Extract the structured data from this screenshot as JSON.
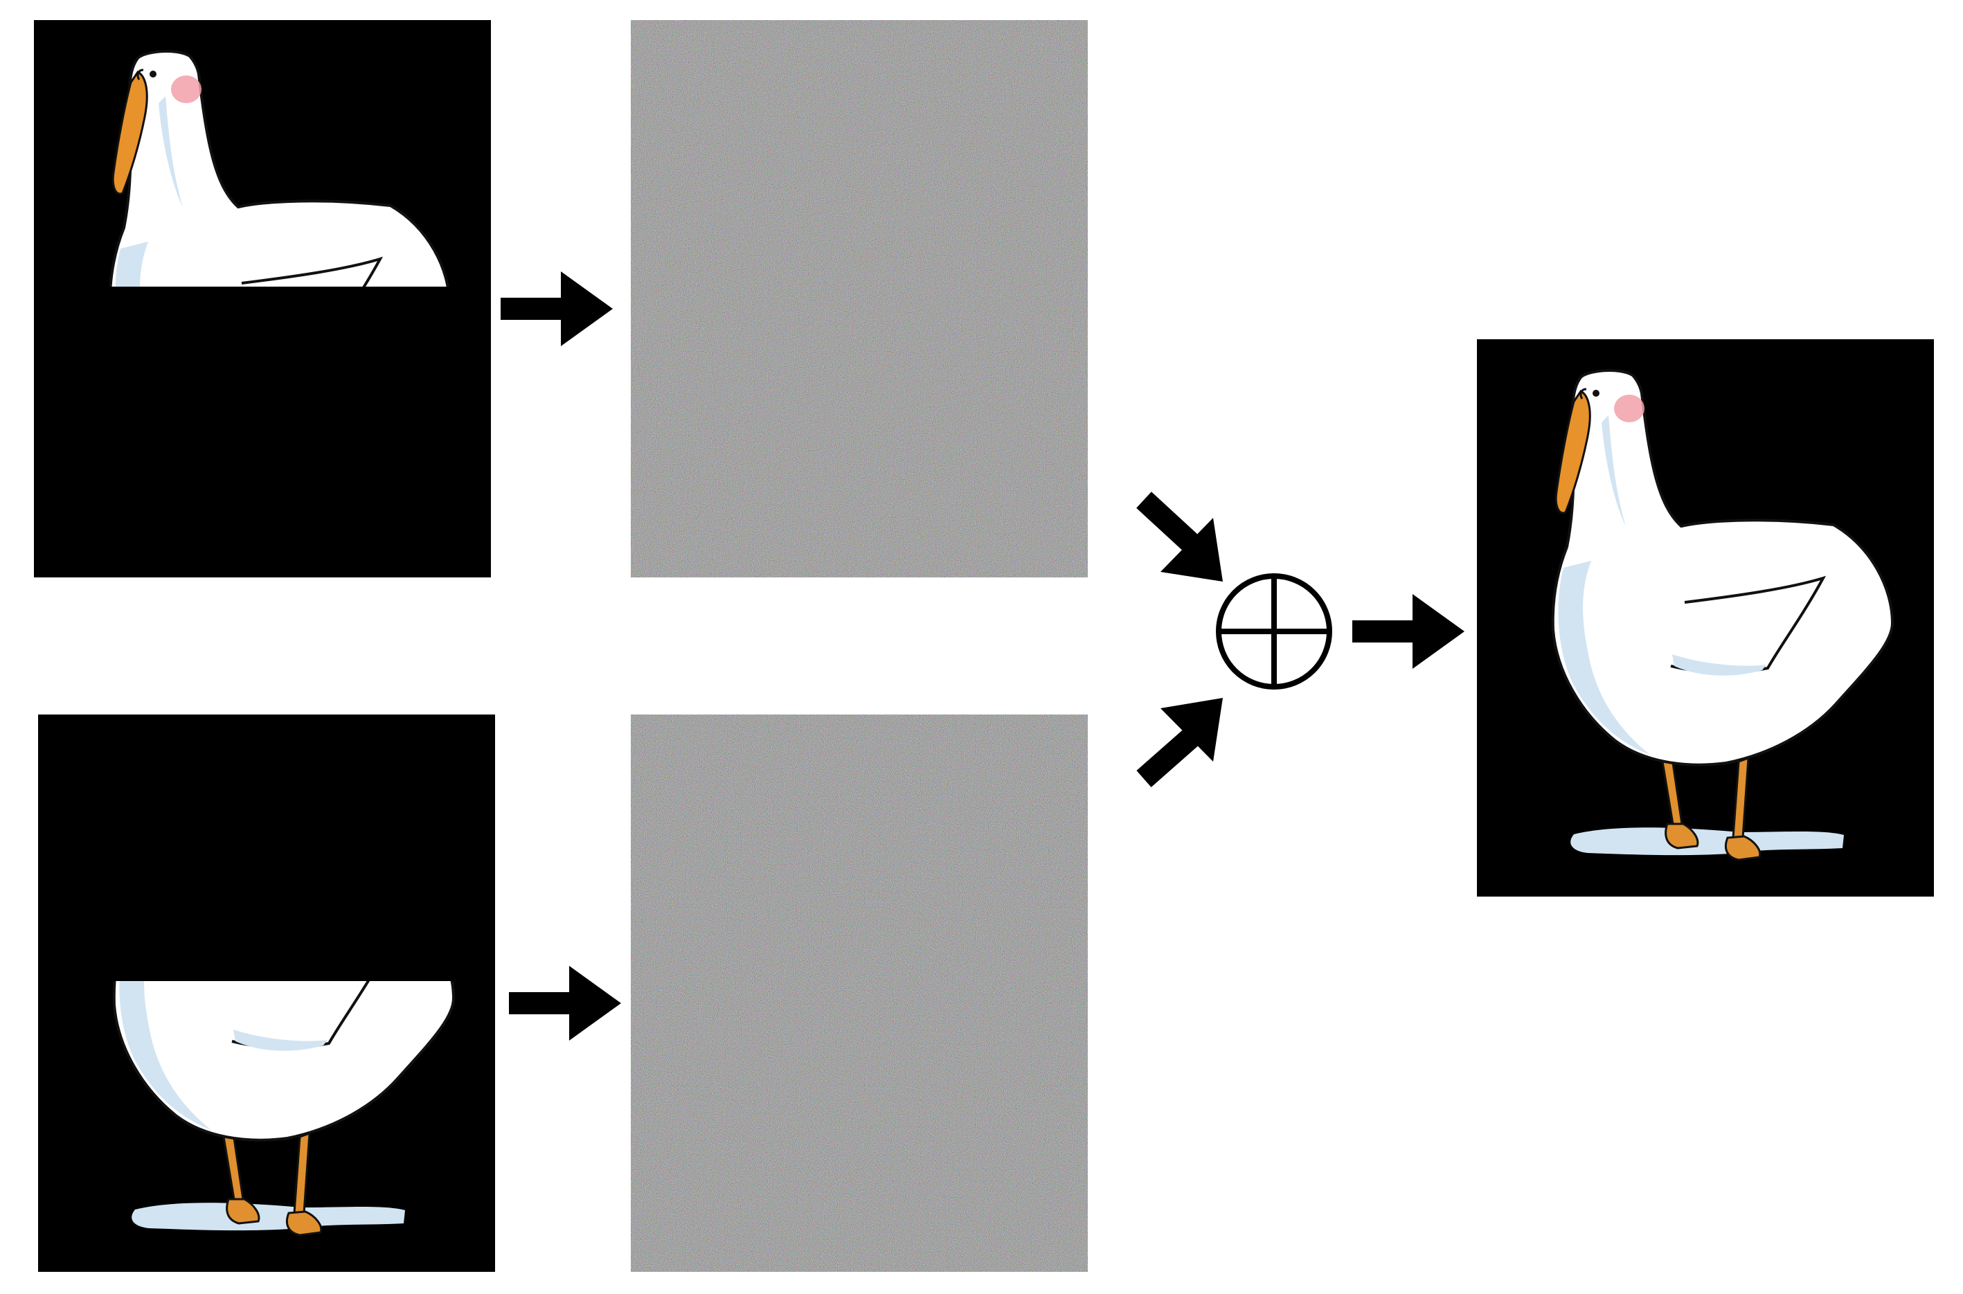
{
  "diagram": {
    "panels": [
      {
        "id": "top-half-input",
        "kind": "image",
        "content": "goose-top-half",
        "background": "#000000"
      },
      {
        "id": "bottom-half-input",
        "kind": "image",
        "content": "goose-bottom-half",
        "background": "#000000"
      },
      {
        "id": "top-noise-share",
        "kind": "noise"
      },
      {
        "id": "bottom-noise-share",
        "kind": "noise"
      },
      {
        "id": "reconstructed-output",
        "kind": "image",
        "content": "goose-full",
        "background": "#000000"
      }
    ],
    "operator": {
      "name": "xor",
      "symbol": "⊕"
    },
    "arrows": [
      {
        "from": "top-half-input",
        "to": "top-noise-share"
      },
      {
        "from": "bottom-half-input",
        "to": "bottom-noise-share"
      },
      {
        "from": "top-noise-share",
        "to": "xor-operator"
      },
      {
        "from": "bottom-noise-share",
        "to": "xor-operator"
      },
      {
        "from": "xor-operator",
        "to": "reconstructed-output"
      }
    ],
    "colors": {
      "background": "#ffffff",
      "panel": "#000000",
      "arrow": "#000000",
      "goose_body": "#ffffff",
      "goose_shadow": "#d2e4f2",
      "goose_outline": "#111111",
      "beak": "#e8922b",
      "cheek": "#f2a0a8",
      "feet": "#e0902e",
      "noise_base": "#8a8a8a"
    },
    "icons": [
      "right-arrow-icon",
      "diagonal-arrow-icon",
      "xor-circle-icon"
    ]
  }
}
